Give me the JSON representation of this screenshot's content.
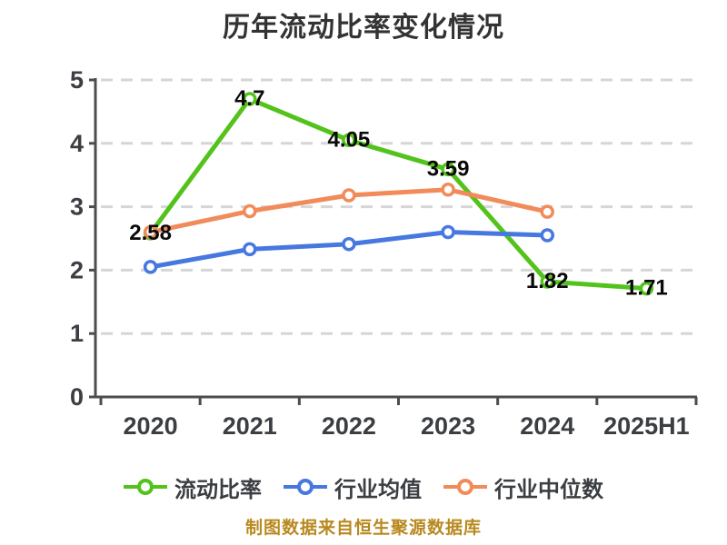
{
  "header": {
    "title": "历年流动比率变化情况"
  },
  "footer": {
    "text": "制图数据来自恒生聚源数据库"
  },
  "legend": {
    "position": "bottom",
    "items": [
      {
        "label": "流动比率"
      },
      {
        "label": "行业均值"
      },
      {
        "label": "行业中位数"
      }
    ]
  },
  "chart_data": {
    "type": "line",
    "title": "历年流动比率变化情况",
    "categories": [
      "2020",
      "2021",
      "2022",
      "2023",
      "2024",
      "2025H1"
    ],
    "series": [
      {
        "name": "流动比率",
        "color": "#53c31c",
        "values": [
          2.58,
          4.7,
          4.05,
          3.59,
          1.82,
          1.71
        ],
        "labels": [
          "2.58",
          "4.7",
          "4.05",
          "3.59",
          "1.82",
          "1.71"
        ],
        "show_labels": true
      },
      {
        "name": "行业均值",
        "color": "#4678e0",
        "values": [
          2.05,
          2.33,
          2.41,
          2.6,
          2.55,
          null
        ],
        "labels": [],
        "show_labels": false
      },
      {
        "name": "行业中位数",
        "color": "#f18b59",
        "values": [
          2.6,
          2.93,
          3.18,
          3.27,
          2.92,
          null
        ],
        "labels": [],
        "show_labels": false
      }
    ],
    "xlabel": "",
    "ylabel": "",
    "ylim": [
      0,
      5
    ],
    "yticks": [
      0,
      1,
      2,
      3,
      4,
      5
    ],
    "grid": "horizontal-dashed",
    "legend_position": "bottom",
    "colors": {
      "axis": "#4d4d4d",
      "grid": "#d6d6d6",
      "tick_text": "#3b3e42",
      "data_label_text": "#0a0a0a",
      "title_text": "#333333",
      "footer_text": "#b8891f",
      "marker_fill": "#ffffff"
    }
  }
}
